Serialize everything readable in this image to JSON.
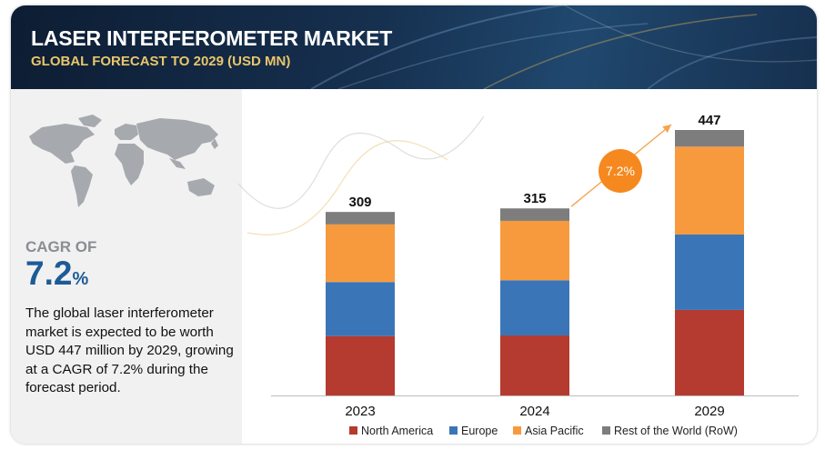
{
  "header": {
    "title": "LASER INTERFEROMETER MARKET",
    "subtitle": "GLOBAL FORECAST TO 2029 (USD MN)"
  },
  "left_panel": {
    "cagr_label": "CAGR OF",
    "cagr_value": "7.2",
    "cagr_unit": "%",
    "summary": "The global laser interferometer market is expected to be worth USD 447 million by 2029, growing at a CAGR of 7.2% during the forecast period."
  },
  "colors": {
    "header_bg": "#16304f",
    "subtitle": "#e9c66a",
    "cagr_blue": "#1d5b96",
    "north_america": "#b53a30",
    "europe": "#3a76b7",
    "asia_pacific": "#f79a3e",
    "row": "#7d7d7d",
    "cagr_bubble": "#f5891f"
  },
  "chart_data": {
    "type": "bar",
    "stacked": true,
    "categories": [
      "2023",
      "2024",
      "2029"
    ],
    "totals": [
      309,
      315,
      447
    ],
    "series": [
      {
        "name": "North America",
        "values": [
          100,
          101,
          144
        ],
        "color": "#b53a30"
      },
      {
        "name": "Europe",
        "values": [
          91,
          93,
          127
        ],
        "color": "#3a76b7"
      },
      {
        "name": "Asia Pacific",
        "values": [
          97,
          100,
          148
        ],
        "color": "#f79a3e"
      },
      {
        "name": "Rest of the World (RoW)",
        "values": [
          21,
          21,
          28
        ],
        "color": "#7d7d7d"
      }
    ],
    "cagr_annotation": "7.2%",
    "legend_position": "bottom",
    "ylim": [
      0,
      447
    ],
    "grid": false
  }
}
